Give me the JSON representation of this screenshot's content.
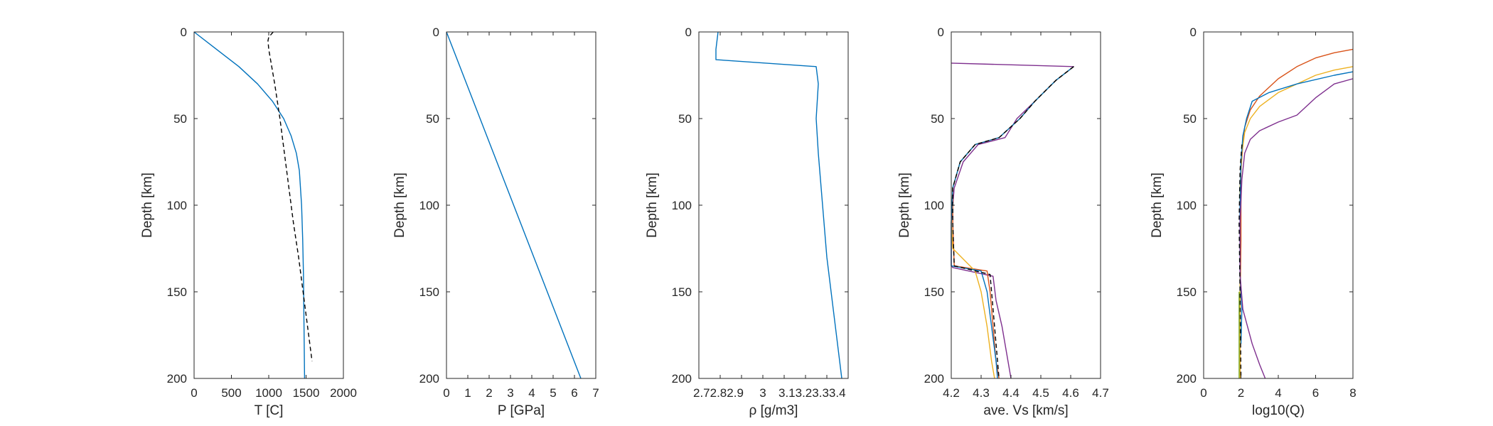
{
  "figure": {
    "line_colors": {
      "blue": "#0072BD",
      "orange": "#D95319",
      "yellow": "#EDB120",
      "purple": "#7E2F8E",
      "green": "#77AC30",
      "black": "#000000"
    }
  },
  "chart_data": [
    {
      "type": "line",
      "xlabel": "T [C]",
      "ylabel": "Depth [km]",
      "xlim": [
        0,
        2000
      ],
      "ylim": [
        0,
        200
      ],
      "y_reversed": true,
      "xticks": [
        0,
        500,
        1000,
        1500,
        2000
      ],
      "xtick_labels": [
        "0",
        "500",
        "1000",
        "1500",
        "2000"
      ],
      "yticks": [
        0,
        50,
        100,
        150,
        200
      ],
      "ytick_labels": [
        "0",
        "50",
        "100",
        "150",
        "200"
      ],
      "series": [
        {
          "color": "#0072BD",
          "style": "solid",
          "x": [
            0,
            300,
            600,
            850,
            1050,
            1200,
            1300,
            1370,
            1410,
            1440,
            1455,
            1465,
            1470,
            1475,
            1480
          ],
          "y": [
            0,
            10,
            20,
            30,
            40,
            50,
            60,
            70,
            80,
            100,
            120,
            140,
            160,
            180,
            200
          ]
        },
        {
          "color": "#000000",
          "style": "dashed",
          "x": [
            1060,
            1000,
            990,
            1000,
            1080,
            1150,
            1210,
            1270,
            1330,
            1400,
            1460,
            1520,
            1580
          ],
          "y": [
            0,
            3,
            5,
            10,
            30,
            50,
            70,
            90,
            110,
            130,
            150,
            170,
            190
          ]
        }
      ]
    },
    {
      "type": "line",
      "xlabel": "P [GPa]",
      "ylabel": "Depth [km]",
      "xlim": [
        0,
        7
      ],
      "ylim": [
        0,
        200
      ],
      "y_reversed": true,
      "xticks": [
        0,
        1,
        2,
        3,
        4,
        5,
        6,
        7
      ],
      "xtick_labels": [
        "0",
        "1",
        "2",
        "3",
        "4",
        "5",
        "6",
        "7"
      ],
      "yticks": [
        0,
        50,
        100,
        150,
        200
      ],
      "ytick_labels": [
        "0",
        "50",
        "100",
        "150",
        "200"
      ],
      "series": [
        {
          "color": "#0072BD",
          "style": "solid",
          "x": [
            0,
            6.3
          ],
          "y": [
            0,
            200
          ]
        }
      ]
    },
    {
      "type": "line",
      "xlabel": "ρ [g/m3]",
      "ylabel": "Depth [km]",
      "xlim": [
        2.7,
        3.4
      ],
      "ylim": [
        0,
        200
      ],
      "y_reversed": true,
      "xticks": [
        2.7,
        2.8,
        2.9,
        3.0,
        3.1,
        3.2,
        3.3,
        3.4
      ],
      "xtick_labels": [
        "2.72.82.9",
        "",
        "",
        "3",
        "3.13.23.33.4",
        "",
        "",
        ""
      ],
      "yticks": [
        0,
        50,
        100,
        150,
        200
      ],
      "ytick_labels": [
        "0",
        "50",
        "100",
        "150",
        "200"
      ],
      "series": [
        {
          "color": "#0072BD",
          "style": "solid",
          "x": [
            2.79,
            2.78,
            2.78,
            3.25,
            3.26,
            3.25,
            3.26,
            3.28,
            3.3,
            3.33,
            3.36,
            3.37
          ],
          "y": [
            0,
            10,
            16,
            20,
            30,
            50,
            70,
            100,
            130,
            160,
            190,
            200
          ]
        }
      ]
    },
    {
      "type": "line",
      "xlabel": "ave. Vs [km/s]",
      "ylabel": "Depth [km]",
      "xlim": [
        4.2,
        4.7
      ],
      "ylim": [
        0,
        200
      ],
      "y_reversed": true,
      "xticks": [
        4.2,
        4.3,
        4.4,
        4.5,
        4.6,
        4.7
      ],
      "xtick_labels": [
        "4.2",
        "4.3",
        "4.4",
        "4.5",
        "4.6",
        "4.7"
      ],
      "yticks": [
        0,
        50,
        100,
        150,
        200
      ],
      "ytick_labels": [
        "0",
        "50",
        "100",
        "150",
        "200"
      ],
      "series": [
        {
          "color": "#7E2F8E",
          "style": "solid",
          "x": [
            4.2,
            4.61,
            4.55,
            4.48,
            4.42,
            4.38,
            4.29,
            4.24,
            4.21,
            4.2,
            4.2,
            4.205,
            4.34,
            4.35,
            4.37,
            4.39,
            4.4
          ],
          "y": [
            18,
            20,
            28,
            40,
            50,
            61,
            65,
            75,
            90,
            110,
            135,
            136,
            141,
            155,
            170,
            190,
            200
          ]
        },
        {
          "color": "#D95319",
          "style": "solid",
          "x": [
            4.61,
            4.55,
            4.48,
            4.43,
            4.36,
            4.28,
            4.23,
            4.205,
            4.205,
            4.21,
            4.32,
            4.33,
            4.34,
            4.35,
            4.36
          ],
          "y": [
            20,
            28,
            40,
            50,
            61,
            65,
            75,
            90,
            110,
            135,
            138,
            150,
            170,
            190,
            200
          ]
        },
        {
          "color": "#EDB120",
          "style": "solid",
          "x": [
            4.61,
            4.55,
            4.48,
            4.43,
            4.36,
            4.28,
            4.23,
            4.205,
            4.2,
            4.205,
            4.28,
            4.3,
            4.32,
            4.335,
            4.345
          ],
          "y": [
            20,
            28,
            40,
            50,
            61,
            65,
            75,
            90,
            110,
            125,
            138,
            150,
            170,
            190,
            200
          ]
        },
        {
          "color": "#0072BD",
          "style": "solid",
          "x": [
            4.61,
            4.55,
            4.48,
            4.43,
            4.36,
            4.28,
            4.23,
            4.205,
            4.2,
            4.2,
            4.3,
            4.32,
            4.335,
            4.35,
            4.355
          ],
          "y": [
            20,
            28,
            40,
            50,
            61,
            65,
            75,
            90,
            110,
            135,
            138,
            150,
            170,
            190,
            200
          ]
        },
        {
          "color": "#000000",
          "style": "dashed",
          "x": [
            4.61,
            4.55,
            4.48,
            4.43,
            4.36,
            4.28,
            4.23,
            4.205,
            4.205,
            4.21,
            4.33,
            4.335,
            4.345,
            4.355,
            4.36
          ],
          "y": [
            20,
            28,
            40,
            50,
            61,
            65,
            75,
            90,
            110,
            135,
            140,
            150,
            170,
            190,
            200
          ]
        }
      ]
    },
    {
      "type": "line",
      "xlabel": "log10(Q)",
      "ylabel": "Depth [km]",
      "xlim": [
        0,
        8
      ],
      "ylim": [
        0,
        200
      ],
      "y_reversed": true,
      "xticks": [
        0,
        2,
        4,
        6,
        8
      ],
      "xtick_labels": [
        "0",
        "2",
        "4",
        "6",
        "8"
      ],
      "yticks": [
        0,
        50,
        100,
        150,
        200
      ],
      "ytick_labels": [
        "0",
        "50",
        "100",
        "150",
        "200"
      ],
      "series": [
        {
          "color": "#D95319",
          "style": "solid",
          "x": [
            8,
            7,
            6,
            5,
            4,
            3,
            2.5,
            2.2,
            2.1,
            2,
            2,
            1.95,
            1.95
          ],
          "y": [
            10,
            12,
            15,
            20,
            27,
            37,
            45,
            55,
            65,
            80,
            120,
            160,
            200
          ]
        },
        {
          "color": "#EDB120",
          "style": "solid",
          "x": [
            8,
            7,
            6,
            5,
            4,
            3,
            2.5,
            2.2,
            2.05,
            1.95,
            1.95,
            1.95
          ],
          "y": [
            20,
            22,
            25,
            30,
            35,
            43,
            50,
            58,
            70,
            90,
            140,
            200
          ]
        },
        {
          "color": "#0072BD",
          "style": "solid",
          "x": [
            8,
            7,
            5,
            3.5,
            2.6,
            2.3,
            2.1,
            2.0,
            1.95,
            1.95,
            2.05,
            2.0
          ],
          "y": [
            23,
            25,
            30,
            35,
            40,
            50,
            60,
            75,
            100,
            140,
            160,
            180
          ]
        },
        {
          "color": "#7E2F8E",
          "style": "solid",
          "x": [
            8,
            7,
            6,
            5,
            4,
            3,
            2.5,
            2.2,
            2.05,
            1.95,
            1.95,
            2.1,
            2.6,
            3.0,
            3.3
          ],
          "y": [
            27,
            30,
            38,
            48,
            52,
            57,
            62,
            70,
            85,
            110,
            140,
            160,
            180,
            192,
            200
          ]
        },
        {
          "color": "#77AC30",
          "style": "solid",
          "x": [
            1.9,
            1.9
          ],
          "y": [
            150,
            200
          ]
        },
        {
          "color": "#000000",
          "style": "dashed",
          "x": [
            2.05,
            1.95,
            1.9,
            1.95,
            2.0
          ],
          "y": [
            65,
            80,
            110,
            150,
            200
          ]
        }
      ]
    }
  ]
}
